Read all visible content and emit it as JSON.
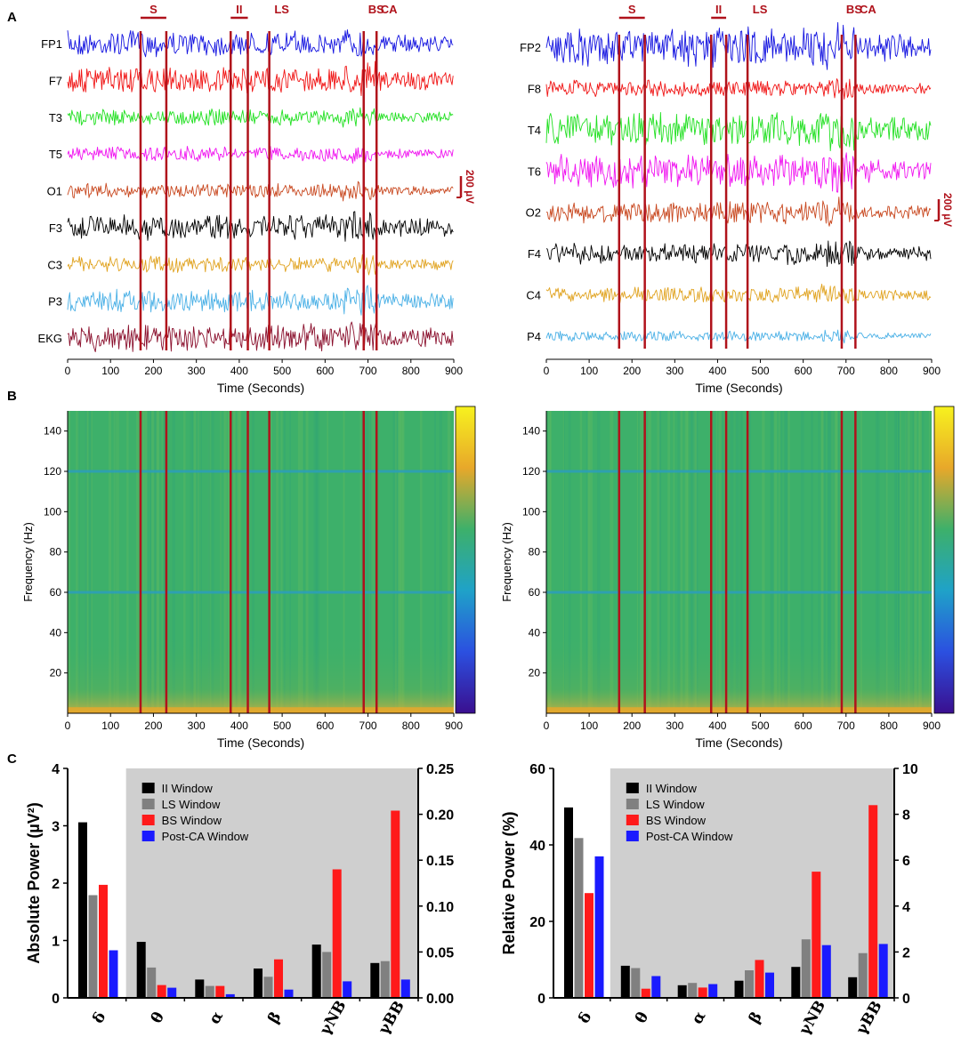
{
  "panel_labels": [
    "A",
    "B",
    "C"
  ],
  "colors": {
    "marker": "#b0121b",
    "bar_ii": "#000000",
    "bar_ls": "#808080",
    "bar_bs": "#ff1a1a",
    "bar_postca": "#1a1aff",
    "shade": "#cfcfcf",
    "spectrogram_bg": "#3db06a"
  },
  "chart_data": [
    {
      "type": "line",
      "panel": "A-left",
      "xlabel": "Time (Seconds)",
      "xlim": [
        0,
        900
      ],
      "xticks": [
        "0",
        "100",
        "200",
        "300",
        "400",
        "500",
        "600",
        "700",
        "800",
        "900"
      ],
      "channels": [
        {
          "name": "FP1",
          "color": "#1414e0",
          "amplitude": 0.85
        },
        {
          "name": "F7",
          "color": "#f01414",
          "amplitude": 0.9
        },
        {
          "name": "T3",
          "color": "#22e022",
          "amplitude": 0.55
        },
        {
          "name": "T5",
          "color": "#f014f0",
          "amplitude": 0.5
        },
        {
          "name": "O1",
          "color": "#c8471e",
          "amplitude": 0.5
        },
        {
          "name": "F3",
          "color": "#000000",
          "amplitude": 0.85
        },
        {
          "name": "C3",
          "color": "#e0a21e",
          "amplitude": 0.55
        },
        {
          "name": "P3",
          "color": "#4ab0e6",
          "amplitude": 0.8
        },
        {
          "name": "EKG",
          "color": "#8a0f2c",
          "amplitude": 0.95
        }
      ],
      "scale_bar_label": "200 µV",
      "events": [
        {
          "label": "S",
          "start": 170,
          "end": 230
        },
        {
          "label": "II",
          "start": 380,
          "end": 420
        },
        {
          "label": "LS",
          "start": 470,
          "end": 470
        },
        {
          "label": "BS",
          "start": 690,
          "end": 690
        },
        {
          "label": "CA",
          "start": 720,
          "end": 720
        }
      ]
    },
    {
      "type": "line",
      "panel": "A-right",
      "xlabel": "Time (Seconds)",
      "xlim": [
        0,
        900
      ],
      "xticks": [
        "0",
        "100",
        "200",
        "300",
        "400",
        "500",
        "600",
        "700",
        "800",
        "900"
      ],
      "channels": [
        {
          "name": "FP2",
          "color": "#1414e0",
          "amplitude": 1.3
        },
        {
          "name": "F8",
          "color": "#f01414",
          "amplitude": 0.55
        },
        {
          "name": "T4",
          "color": "#22e022",
          "amplitude": 1.2
        },
        {
          "name": "T6",
          "color": "#f014f0",
          "amplitude": 1.1
        },
        {
          "name": "O2",
          "color": "#c8471e",
          "amplitude": 0.75
        },
        {
          "name": "F4",
          "color": "#000000",
          "amplitude": 0.75
        },
        {
          "name": "C4",
          "color": "#e0a21e",
          "amplitude": 0.55
        },
        {
          "name": "P4",
          "color": "#4ab0e6",
          "amplitude": 0.35
        }
      ],
      "scale_bar_label": "200 µV",
      "events": [
        {
          "label": "S",
          "start": 170,
          "end": 230
        },
        {
          "label": "II",
          "start": 385,
          "end": 420
        },
        {
          "label": "LS",
          "start": 470,
          "end": 470
        },
        {
          "label": "BS",
          "start": 690,
          "end": 690
        },
        {
          "label": "CA",
          "start": 722,
          "end": 722
        }
      ]
    },
    {
      "type": "heatmap",
      "panel": "B-left",
      "xlabel": "Time (Seconds)",
      "ylabel": "Frequency (Hz)",
      "xlim": [
        0,
        900
      ],
      "ylim": [
        0,
        150
      ],
      "xticks": [
        "0",
        "100",
        "200",
        "300",
        "400",
        "500",
        "600",
        "700",
        "800",
        "900"
      ],
      "yticks": [
        "20",
        "40",
        "60",
        "80",
        "100",
        "120",
        "140"
      ],
      "line_noise_bands_hz": [
        60,
        120
      ],
      "event_lines": [
        170,
        230,
        380,
        420,
        470,
        690,
        720
      ]
    },
    {
      "type": "heatmap",
      "panel": "B-right",
      "xlabel": "Time (Seconds)",
      "ylabel": "Frequency (Hz)",
      "xlim": [
        0,
        900
      ],
      "ylim": [
        0,
        150
      ],
      "xticks": [
        "0",
        "100",
        "200",
        "300",
        "400",
        "500",
        "600",
        "700",
        "800",
        "900"
      ],
      "yticks": [
        "20",
        "40",
        "60",
        "80",
        "100",
        "120",
        "140"
      ],
      "line_noise_bands_hz": [
        60,
        120
      ],
      "event_lines": [
        170,
        230,
        385,
        420,
        470,
        690,
        722
      ]
    },
    {
      "type": "bar",
      "panel": "C-left",
      "ylabel_left": "Absolute Power (µV²)",
      "ylim_left": [
        0,
        4
      ],
      "yticks_left": [
        "0",
        "1",
        "2",
        "3",
        "4"
      ],
      "ylim_right": [
        0,
        0.25
      ],
      "yticks_right": [
        "0.00",
        "0.05",
        "0.10",
        "0.15",
        "0.20",
        "0.25"
      ],
      "categories": [
        "δ",
        "θ",
        "α",
        "β",
        "γNB",
        "γBB"
      ],
      "category_axis": [
        "left",
        "right",
        "right",
        "right",
        "right",
        "right"
      ],
      "legend_position": "top-left of shaded area",
      "series": [
        {
          "name": "II Window",
          "values": [
            3.06,
            0.061,
            0.02,
            0.032,
            0.058,
            0.038
          ]
        },
        {
          "name": "LS Window",
          "values": [
            1.79,
            0.033,
            0.013,
            0.023,
            0.05,
            0.04
          ]
        },
        {
          "name": "BS Window",
          "values": [
            1.97,
            0.014,
            0.013,
            0.042,
            0.14,
            0.204
          ]
        },
        {
          "name": "Post-CA Window",
          "values": [
            0.83,
            0.011,
            0.004,
            0.009,
            0.018,
            0.02
          ]
        }
      ]
    },
    {
      "type": "bar",
      "panel": "C-right",
      "ylabel_left": "Relative  Power (%)",
      "ylim_left": [
        0,
        60
      ],
      "yticks_left": [
        "0",
        "20",
        "40",
        "60"
      ],
      "ylim_right": [
        0,
        10
      ],
      "yticks_right": [
        "0",
        "2",
        "4",
        "6",
        "8",
        "10"
      ],
      "categories": [
        "δ",
        "θ",
        "α",
        "β",
        "γNB",
        "γBB"
      ],
      "category_axis": [
        "left",
        "right",
        "right",
        "right",
        "right",
        "right"
      ],
      "legend_position": "top-left of shaded area",
      "series": [
        {
          "name": "II Window",
          "values": [
            49.8,
            1.4,
            0.55,
            0.75,
            1.35,
            0.9
          ]
        },
        {
          "name": "LS Window",
          "values": [
            41.8,
            1.3,
            0.65,
            1.2,
            2.55,
            1.95
          ]
        },
        {
          "name": "BS Window",
          "values": [
            27.4,
            0.4,
            0.45,
            1.65,
            5.5,
            8.4
          ]
        },
        {
          "name": "Post-CA Window",
          "values": [
            37.0,
            0.95,
            0.6,
            1.1,
            2.3,
            2.35
          ]
        }
      ]
    }
  ]
}
